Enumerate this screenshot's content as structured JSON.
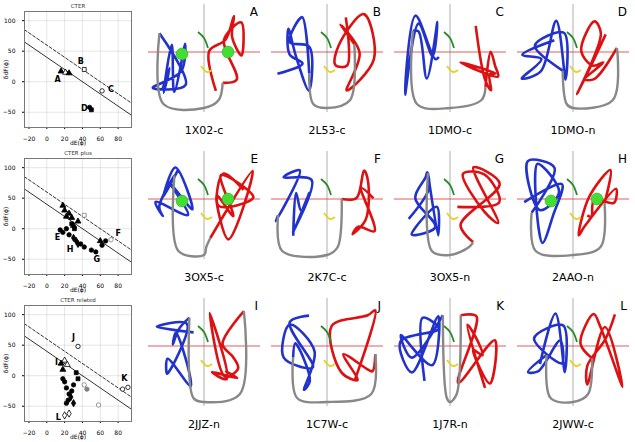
{
  "chart_data": [
    {
      "type": "scatter",
      "title": "CTER",
      "x_label": "dE(ϕ)",
      "y_label": "δdF(ϕ)",
      "xlim": [
        -25,
        95
      ],
      "ylim": [
        -75,
        115
      ],
      "xticks": [
        -20,
        0,
        20,
        40,
        60,
        80
      ],
      "yticks": [
        -50,
        0,
        50,
        100
      ],
      "grid": true,
      "reference_lines": [
        {
          "x": [
            -25,
            95
          ],
          "y": [
            65,
            -55
          ],
          "line_style": "solid"
        },
        {
          "x": [
            -25,
            95
          ],
          "y": [
            85,
            -35
          ],
          "line_style": "dashed"
        }
      ],
      "points": [
        {
          "x": 16,
          "y": 17,
          "marker": "triangle",
          "filled": true,
          "color": "black"
        },
        {
          "x": 21,
          "y": 15,
          "marker": "triangle",
          "filled": false,
          "color": "black"
        },
        {
          "x": 25,
          "y": 14,
          "marker": "triangle",
          "filled": true,
          "color": "black"
        },
        {
          "x": 42,
          "y": 20,
          "marker": "square",
          "filled": false,
          "color": "black"
        },
        {
          "x": 62,
          "y": -15,
          "marker": "circle",
          "filled": false,
          "color": "black"
        },
        {
          "x": 48,
          "y": -42,
          "marker": "circle",
          "filled": true,
          "color": "black"
        },
        {
          "x": 50,
          "y": -46,
          "marker": "square",
          "filled": true,
          "color": "black"
        }
      ],
      "annotations": [
        {
          "text": "A",
          "x": 12,
          "y": 4
        },
        {
          "text": "B",
          "x": 38,
          "y": 33
        },
        {
          "text": "C",
          "x": 72,
          "y": -12
        },
        {
          "text": "D",
          "x": 42,
          "y": -44
        }
      ]
    },
    {
      "type": "scatter",
      "title": "CTER plus",
      "x_label": "dE(ϕ)",
      "y_label": "δdF(ϕ)",
      "xlim": [
        -25,
        95
      ],
      "ylim": [
        -75,
        115
      ],
      "xticks": [
        -20,
        0,
        20,
        40,
        60,
        80
      ],
      "yticks": [
        -50,
        0,
        50,
        100
      ],
      "grid": true,
      "reference_lines": [
        {
          "x": [
            -25,
            95
          ],
          "y": [
            65,
            -55
          ],
          "line_style": "solid"
        },
        {
          "x": [
            -25,
            95
          ],
          "y": [
            85,
            -35
          ],
          "line_style": "dashed"
        }
      ],
      "points": [
        {
          "x": 18,
          "y": 38,
          "marker": "triangle",
          "filled": true,
          "color": "black"
        },
        {
          "x": 20,
          "y": 30,
          "marker": "triangle",
          "filled": true,
          "color": "black"
        },
        {
          "x": 25,
          "y": 25,
          "marker": "triangle",
          "filled": true,
          "color": "black"
        },
        {
          "x": 22,
          "y": 20,
          "marker": "triangle",
          "filled": true,
          "color": "black"
        },
        {
          "x": 28,
          "y": 18,
          "marker": "triangle",
          "filled": true,
          "color": "black"
        },
        {
          "x": 35,
          "y": 12,
          "marker": "triangle",
          "filled": true,
          "color": "black"
        },
        {
          "x": 30,
          "y": 5,
          "marker": "triangle",
          "filled": true,
          "color": "black"
        },
        {
          "x": 60,
          "y": -20,
          "marker": "triangle",
          "filled": true,
          "color": "black"
        },
        {
          "x": 15,
          "y": -2,
          "marker": "circle",
          "filled": true,
          "color": "black"
        },
        {
          "x": 18,
          "y": -6,
          "marker": "circle",
          "filled": true,
          "color": "black"
        },
        {
          "x": 22,
          "y": 0,
          "marker": "circle",
          "filled": true,
          "color": "black"
        },
        {
          "x": 25,
          "y": -10,
          "marker": "circle",
          "filled": true,
          "color": "black"
        },
        {
          "x": 38,
          "y": -25,
          "marker": "circle",
          "filled": true,
          "color": "black"
        },
        {
          "x": 42,
          "y": -30,
          "marker": "circle",
          "filled": true,
          "color": "black"
        },
        {
          "x": 50,
          "y": -35,
          "marker": "circle",
          "filled": true,
          "color": "black"
        },
        {
          "x": 55,
          "y": -38,
          "marker": "circle",
          "filled": true,
          "color": "black"
        },
        {
          "x": 62,
          "y": -27,
          "marker": "circle",
          "filled": true,
          "color": "black"
        },
        {
          "x": 66,
          "y": -20,
          "marker": "circle",
          "filled": true,
          "color": "black"
        },
        {
          "x": 30,
          "y": -15,
          "marker": "diamond",
          "filled": true,
          "color": "black"
        },
        {
          "x": 33,
          "y": -20,
          "marker": "diamond",
          "filled": true,
          "color": "black"
        },
        {
          "x": 35,
          "y": -25,
          "marker": "diamond",
          "filled": true,
          "color": "black"
        },
        {
          "x": 28,
          "y": 8,
          "marker": "square",
          "filled": true,
          "color": "black"
        },
        {
          "x": 31,
          "y": 0,
          "marker": "square",
          "filled": true,
          "color": "black"
        },
        {
          "x": 42,
          "y": 22,
          "marker": "square",
          "filled": false,
          "color": "gray"
        },
        {
          "x": 72,
          "y": -18,
          "marker": "circle",
          "filled": false,
          "color": "gray"
        }
      ],
      "annotations": [
        {
          "text": "E",
          "x": 12,
          "y": -14
        },
        {
          "text": "F",
          "x": 80,
          "y": -8
        },
        {
          "text": "G",
          "x": 56,
          "y": -50
        },
        {
          "text": "H",
          "x": 26,
          "y": -34
        }
      ]
    },
    {
      "type": "scatter",
      "title": "CTER related",
      "x_label": "dE(ϕ)",
      "y_label": "δdF(ϕ)",
      "xlim": [
        -25,
        95
      ],
      "ylim": [
        -75,
        115
      ],
      "xticks": [
        -20,
        0,
        20,
        40,
        60,
        80
      ],
      "yticks": [
        -50,
        0,
        50,
        100
      ],
      "grid": true,
      "reference_lines": [
        {
          "x": [
            -25,
            95
          ],
          "y": [
            65,
            -55
          ],
          "line_style": "solid"
        },
        {
          "x": [
            -25,
            95
          ],
          "y": [
            85,
            -35
          ],
          "line_style": "dashed"
        }
      ],
      "points": [
        {
          "x": 35,
          "y": 48,
          "marker": "circle",
          "filled": false,
          "color": "black"
        },
        {
          "x": 20,
          "y": 25,
          "marker": "triangle",
          "filled": false,
          "color": "black"
        },
        {
          "x": 23,
          "y": 18,
          "marker": "triangle",
          "filled": false,
          "color": "black"
        },
        {
          "x": 16,
          "y": 20,
          "marker": "triangle",
          "filled": true,
          "color": "black"
        },
        {
          "x": 18,
          "y": 10,
          "marker": "triangle",
          "filled": true,
          "color": "black"
        },
        {
          "x": 20,
          "y": -10,
          "marker": "circle",
          "filled": true,
          "color": "black"
        },
        {
          "x": 22,
          "y": -20,
          "marker": "circle",
          "filled": true,
          "color": "black"
        },
        {
          "x": 25,
          "y": -30,
          "marker": "circle",
          "filled": true,
          "color": "black"
        },
        {
          "x": 18,
          "y": -5,
          "marker": "circle",
          "filled": true,
          "color": "black"
        },
        {
          "x": 24,
          "y": -40,
          "marker": "circle",
          "filled": true,
          "color": "black"
        },
        {
          "x": 28,
          "y": -25,
          "marker": "circle",
          "filled": true,
          "color": "black"
        },
        {
          "x": 30,
          "y": -15,
          "marker": "circle",
          "filled": true,
          "color": "black"
        },
        {
          "x": 22,
          "y": -45,
          "marker": "circle",
          "filled": true,
          "color": "black"
        },
        {
          "x": 33,
          "y": 5,
          "marker": "square",
          "filled": true,
          "color": "black"
        },
        {
          "x": 35,
          "y": -5,
          "marker": "square",
          "filled": true,
          "color": "black"
        },
        {
          "x": 27,
          "y": -35,
          "marker": "diamond",
          "filled": true,
          "color": "black"
        },
        {
          "x": 30,
          "y": -45,
          "marker": "diamond",
          "filled": true,
          "color": "black"
        },
        {
          "x": 20,
          "y": -65,
          "marker": "diamond",
          "filled": false,
          "color": "black"
        },
        {
          "x": 25,
          "y": -62,
          "marker": "diamond",
          "filled": false,
          "color": "black"
        },
        {
          "x": 42,
          "y": -15,
          "marker": "circle",
          "filled": false,
          "color": "gray"
        },
        {
          "x": 45,
          "y": -22,
          "marker": "circle",
          "filled": true,
          "color": "gray"
        },
        {
          "x": 58,
          "y": -48,
          "marker": "circle",
          "filled": false,
          "color": "gray"
        },
        {
          "x": 85,
          "y": -22,
          "marker": "circle",
          "filled": false,
          "color": "black"
        },
        {
          "x": 91,
          "y": -19,
          "marker": "circle",
          "filled": false,
          "color": "black"
        }
      ],
      "annotations": [
        {
          "text": "I",
          "x": 11,
          "y": 22
        },
        {
          "text": "J",
          "x": 30,
          "y": 62
        },
        {
          "text": "K",
          "x": 87,
          "y": -5
        },
        {
          "text": "L",
          "x": 13,
          "y": -68
        }
      ]
    }
  ],
  "structures": [
    {
      "letter": "A",
      "label": "1X02-c",
      "spheres": 2
    },
    {
      "letter": "B",
      "label": "2L53-c",
      "spheres": 0
    },
    {
      "letter": "C",
      "label": "1DMO-c",
      "spheres": 0
    },
    {
      "letter": "D",
      "label": "1DMO-n",
      "spheres": 0
    },
    {
      "letter": "E",
      "label": "3OX5-c",
      "spheres": 2
    },
    {
      "letter": "F",
      "label": "2K7C-c",
      "spheres": 0
    },
    {
      "letter": "G",
      "label": "3OX5-n",
      "spheres": 0
    },
    {
      "letter": "H",
      "label": "2AAO-n",
      "spheres": 2
    },
    {
      "letter": "I",
      "label": "2JJZ-n",
      "spheres": 0
    },
    {
      "letter": "J",
      "label": "1C7W-c",
      "spheres": 0
    },
    {
      "letter": "K",
      "label": "1J7R-n",
      "spheres": 0
    },
    {
      "letter": "L",
      "label": "2JWW-c",
      "spheres": 0
    }
  ]
}
